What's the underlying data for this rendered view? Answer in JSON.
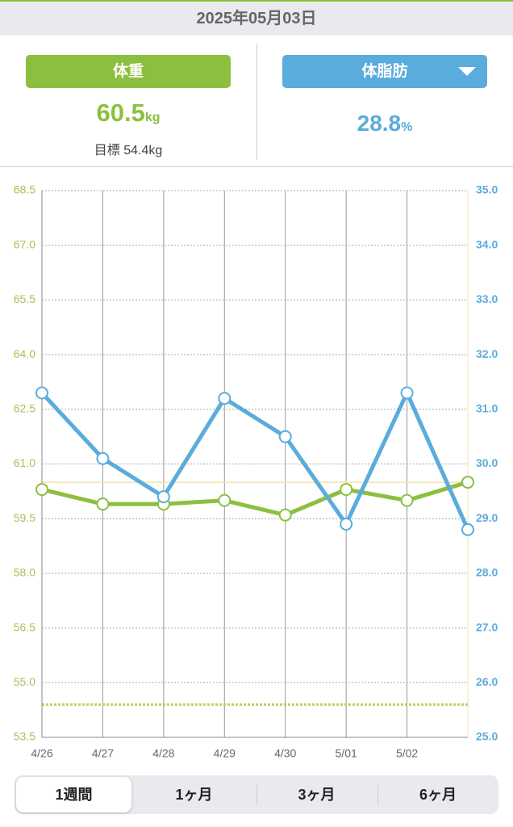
{
  "header": {
    "date": "2025年05月03日"
  },
  "cards": {
    "weight": {
      "button": "体重",
      "value": 60.5,
      "unit": "kg",
      "target_label": "目標",
      "target_value": 54.4,
      "target_unit": "kg"
    },
    "fat": {
      "button": "体脂肪",
      "value": 28.8,
      "unit": "%"
    }
  },
  "chart_data": {
    "type": "line",
    "categories": [
      "4/26",
      "4/27",
      "4/28",
      "4/29",
      "4/30",
      "5/01",
      "5/02",
      null
    ],
    "series": [
      {
        "name": "体重",
        "color": "#8cbf3f",
        "values": [
          60.3,
          59.9,
          59.9,
          60.0,
          59.6,
          60.3,
          60.0,
          60.5
        ]
      },
      {
        "name": "体脂肪",
        "color": "#5aacdc",
        "axis": "y2",
        "values": [
          31.3,
          30.1,
          29.4,
          31.2,
          30.5,
          28.9,
          31.3,
          28.8
        ]
      }
    ],
    "ylim": [
      53.5,
      68.5
    ],
    "yticks": [
      68.5,
      {
        "value": 67,
        "label": "67.0"
      },
      65.5,
      {
        "value": 64,
        "label": "64.0"
      },
      62.5,
      {
        "value": 61,
        "label": "61.0"
      },
      59.5,
      {
        "value": 58,
        "label": "58.0"
      },
      56.5,
      {
        "value": 55,
        "label": "55.0"
      },
      53.5
    ],
    "y2lim": [
      25,
      35
    ],
    "y2ticks": [
      {
        "value": 35,
        "label": "35.0"
      },
      {
        "value": 34,
        "label": "34.0"
      },
      {
        "value": 33,
        "label": "33.0"
      },
      {
        "value": 32,
        "label": "32.0"
      },
      {
        "value": 31,
        "label": "31.0"
      },
      {
        "value": 30,
        "label": "30.0"
      },
      {
        "value": 29,
        "label": "29.0"
      },
      {
        "value": 28,
        "label": "28.0"
      },
      {
        "value": 27,
        "label": "27.0"
      },
      {
        "value": 26,
        "label": "26.0"
      },
      {
        "value": 25,
        "label": "25.0"
      }
    ],
    "grid": true
  },
  "tabs": [
    "1週間",
    "1ヶ月",
    "3ヶ月",
    "6ヶ月"
  ]
}
